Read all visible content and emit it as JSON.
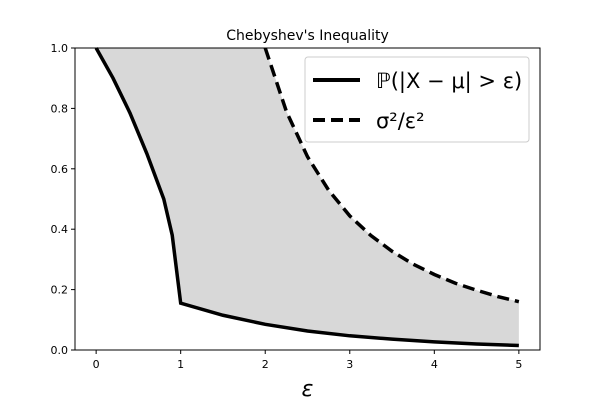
{
  "chart_data": {
    "type": "line",
    "title": "Chebyshev's Inequality",
    "xlabel": "ε",
    "ylabel": "",
    "xlim": [
      -0.25,
      5.25
    ],
    "ylim": [
      0,
      1
    ],
    "xticks": [
      "0",
      "1",
      "2",
      "3",
      "4",
      "5"
    ],
    "yticks": [
      "0.0",
      "0.2",
      "0.4",
      "0.6",
      "0.8",
      "1.0"
    ],
    "grid": false,
    "legend_position": "top-right",
    "fill_between": {
      "color": "#d8d8d8",
      "from_series": 0,
      "to_series": 1,
      "x_range": [
        0,
        5
      ]
    },
    "series": [
      {
        "name": "ℙ(|X − μ| > ε)",
        "style": "solid",
        "color": "#000000",
        "x": [
          0,
          0.2,
          0.4,
          0.6,
          0.8,
          0.9,
          1.0,
          1.5,
          2,
          2.5,
          3,
          3.5,
          4,
          4.5,
          5
        ],
        "y": [
          1,
          0.9,
          0.785,
          0.65,
          0.5,
          0.38,
          0.155,
          0.115,
          0.085,
          0.063,
          0.047,
          0.036,
          0.027,
          0.02,
          0.015
        ]
      },
      {
        "name": "σ²/ε²",
        "style": "dashed",
        "color": "#000000",
        "x": [
          2,
          2.25,
          2.5,
          2.75,
          3,
          3.25,
          3.5,
          3.75,
          4,
          4.25,
          4.5,
          4.75,
          5
        ],
        "y": [
          1,
          0.79,
          0.64,
          0.529,
          0.444,
          0.379,
          0.327,
          0.284,
          0.25,
          0.221,
          0.198,
          0.177,
          0.16
        ]
      }
    ]
  }
}
